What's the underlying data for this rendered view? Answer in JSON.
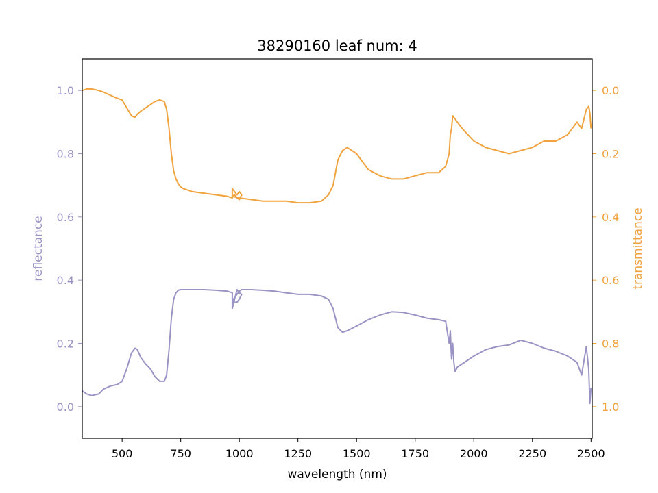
{
  "chart_data": {
    "type": "line",
    "title": "38290160 leaf num: 4",
    "xlabel": "wavelength (nm)",
    "ylabel_left": "reflectance",
    "ylabel_right": "transmittance",
    "xlim": [
      330,
      2505
    ],
    "ylim_left": [
      -0.1,
      1.1
    ],
    "ylim_right": [
      1.1,
      -0.1
    ],
    "x_ticks": [
      500,
      750,
      1000,
      1250,
      1500,
      1750,
      2000,
      2250,
      2500
    ],
    "y_ticks_left": [
      0.0,
      0.2,
      0.4,
      0.6,
      0.8,
      1.0
    ],
    "y_ticks_right": [
      0.0,
      0.2,
      0.4,
      0.6,
      0.8,
      1.0
    ],
    "grid": false,
    "colors": {
      "reflectance": "#9a94c5",
      "transmittance": "#f0a33e",
      "axes": "#000000"
    },
    "series": [
      {
        "axis": "left",
        "x": [
          330,
          350,
          370,
          400,
          420,
          450,
          480,
          500,
          520,
          540,
          555,
          565,
          580,
          600,
          620,
          640,
          660,
          680,
          690,
          700,
          710,
          720,
          730,
          740,
          750,
          760,
          780,
          800,
          850,
          900,
          950,
          970,
          970,
          980,
          990,
          1000,
          1010,
          1000,
          990,
          980,
          970,
          975,
          1000,
          1010,
          1050,
          1100,
          1150,
          1200,
          1250,
          1300,
          1350,
          1380,
          1400,
          1420,
          1440,
          1460,
          1500,
          1550,
          1600,
          1650,
          1700,
          1750,
          1800,
          1850,
          1880,
          1895,
          1900,
          1905,
          1910,
          1915,
          1920,
          1930,
          1950,
          2000,
          2050,
          2100,
          2150,
          2200,
          2250,
          2300,
          2350,
          2400,
          2440,
          2460,
          2480,
          2490,
          2495,
          2500
        ],
        "values": [
          0.05,
          0.04,
          0.035,
          0.04,
          0.055,
          0.065,
          0.07,
          0.08,
          0.12,
          0.17,
          0.185,
          0.18,
          0.155,
          0.135,
          0.12,
          0.095,
          0.08,
          0.08,
          0.1,
          0.18,
          0.28,
          0.34,
          0.36,
          0.368,
          0.37,
          0.37,
          0.37,
          0.37,
          0.37,
          0.368,
          0.365,
          0.36,
          0.31,
          0.34,
          0.37,
          0.36,
          0.355,
          0.34,
          0.33,
          0.33,
          0.33,
          0.34,
          0.365,
          0.37,
          0.37,
          0.368,
          0.365,
          0.36,
          0.355,
          0.355,
          0.35,
          0.34,
          0.31,
          0.25,
          0.235,
          0.24,
          0.255,
          0.275,
          0.29,
          0.3,
          0.298,
          0.29,
          0.28,
          0.275,
          0.27,
          0.2,
          0.24,
          0.15,
          0.2,
          0.14,
          0.11,
          0.125,
          0.135,
          0.16,
          0.18,
          0.19,
          0.195,
          0.21,
          0.2,
          0.185,
          0.175,
          0.16,
          0.14,
          0.1,
          0.19,
          0.12,
          0.01,
          0.06
        ]
      },
      {
        "axis": "right",
        "x": [
          330,
          350,
          370,
          400,
          420,
          450,
          480,
          500,
          520,
          540,
          555,
          565,
          580,
          600,
          620,
          640,
          660,
          680,
          690,
          700,
          710,
          720,
          730,
          740,
          750,
          760,
          780,
          800,
          850,
          900,
          950,
          970,
          970,
          980,
          990,
          1000,
          1010,
          1000,
          990,
          980,
          970,
          1000,
          1050,
          1100,
          1150,
          1200,
          1250,
          1300,
          1350,
          1380,
          1400,
          1420,
          1440,
          1460,
          1500,
          1550,
          1600,
          1650,
          1700,
          1750,
          1800,
          1850,
          1880,
          1895,
          1900,
          1905,
          1910,
          1920,
          1930,
          1950,
          2000,
          2050,
          2100,
          2150,
          2200,
          2250,
          2300,
          2350,
          2400,
          2440,
          2460,
          2480,
          2490,
          2495,
          2500
        ],
        "values": [
          0.0,
          -0.005,
          -0.005,
          0.0,
          0.005,
          0.015,
          0.025,
          0.03,
          0.055,
          0.08,
          0.085,
          0.075,
          0.065,
          0.055,
          0.045,
          0.035,
          0.03,
          0.035,
          0.06,
          0.12,
          0.2,
          0.255,
          0.28,
          0.295,
          0.305,
          0.31,
          0.315,
          0.32,
          0.325,
          0.33,
          0.335,
          0.34,
          0.31,
          0.32,
          0.33,
          0.32,
          0.33,
          0.345,
          0.34,
          0.33,
          0.335,
          0.34,
          0.345,
          0.35,
          0.35,
          0.35,
          0.355,
          0.355,
          0.35,
          0.33,
          0.3,
          0.22,
          0.19,
          0.18,
          0.2,
          0.25,
          0.27,
          0.28,
          0.28,
          0.27,
          0.26,
          0.26,
          0.24,
          0.2,
          0.14,
          0.12,
          0.08,
          0.09,
          0.1,
          0.12,
          0.16,
          0.18,
          0.19,
          0.2,
          0.19,
          0.18,
          0.16,
          0.16,
          0.14,
          0.1,
          0.12,
          0.06,
          0.05,
          0.07,
          0.12
        ]
      }
    ]
  }
}
